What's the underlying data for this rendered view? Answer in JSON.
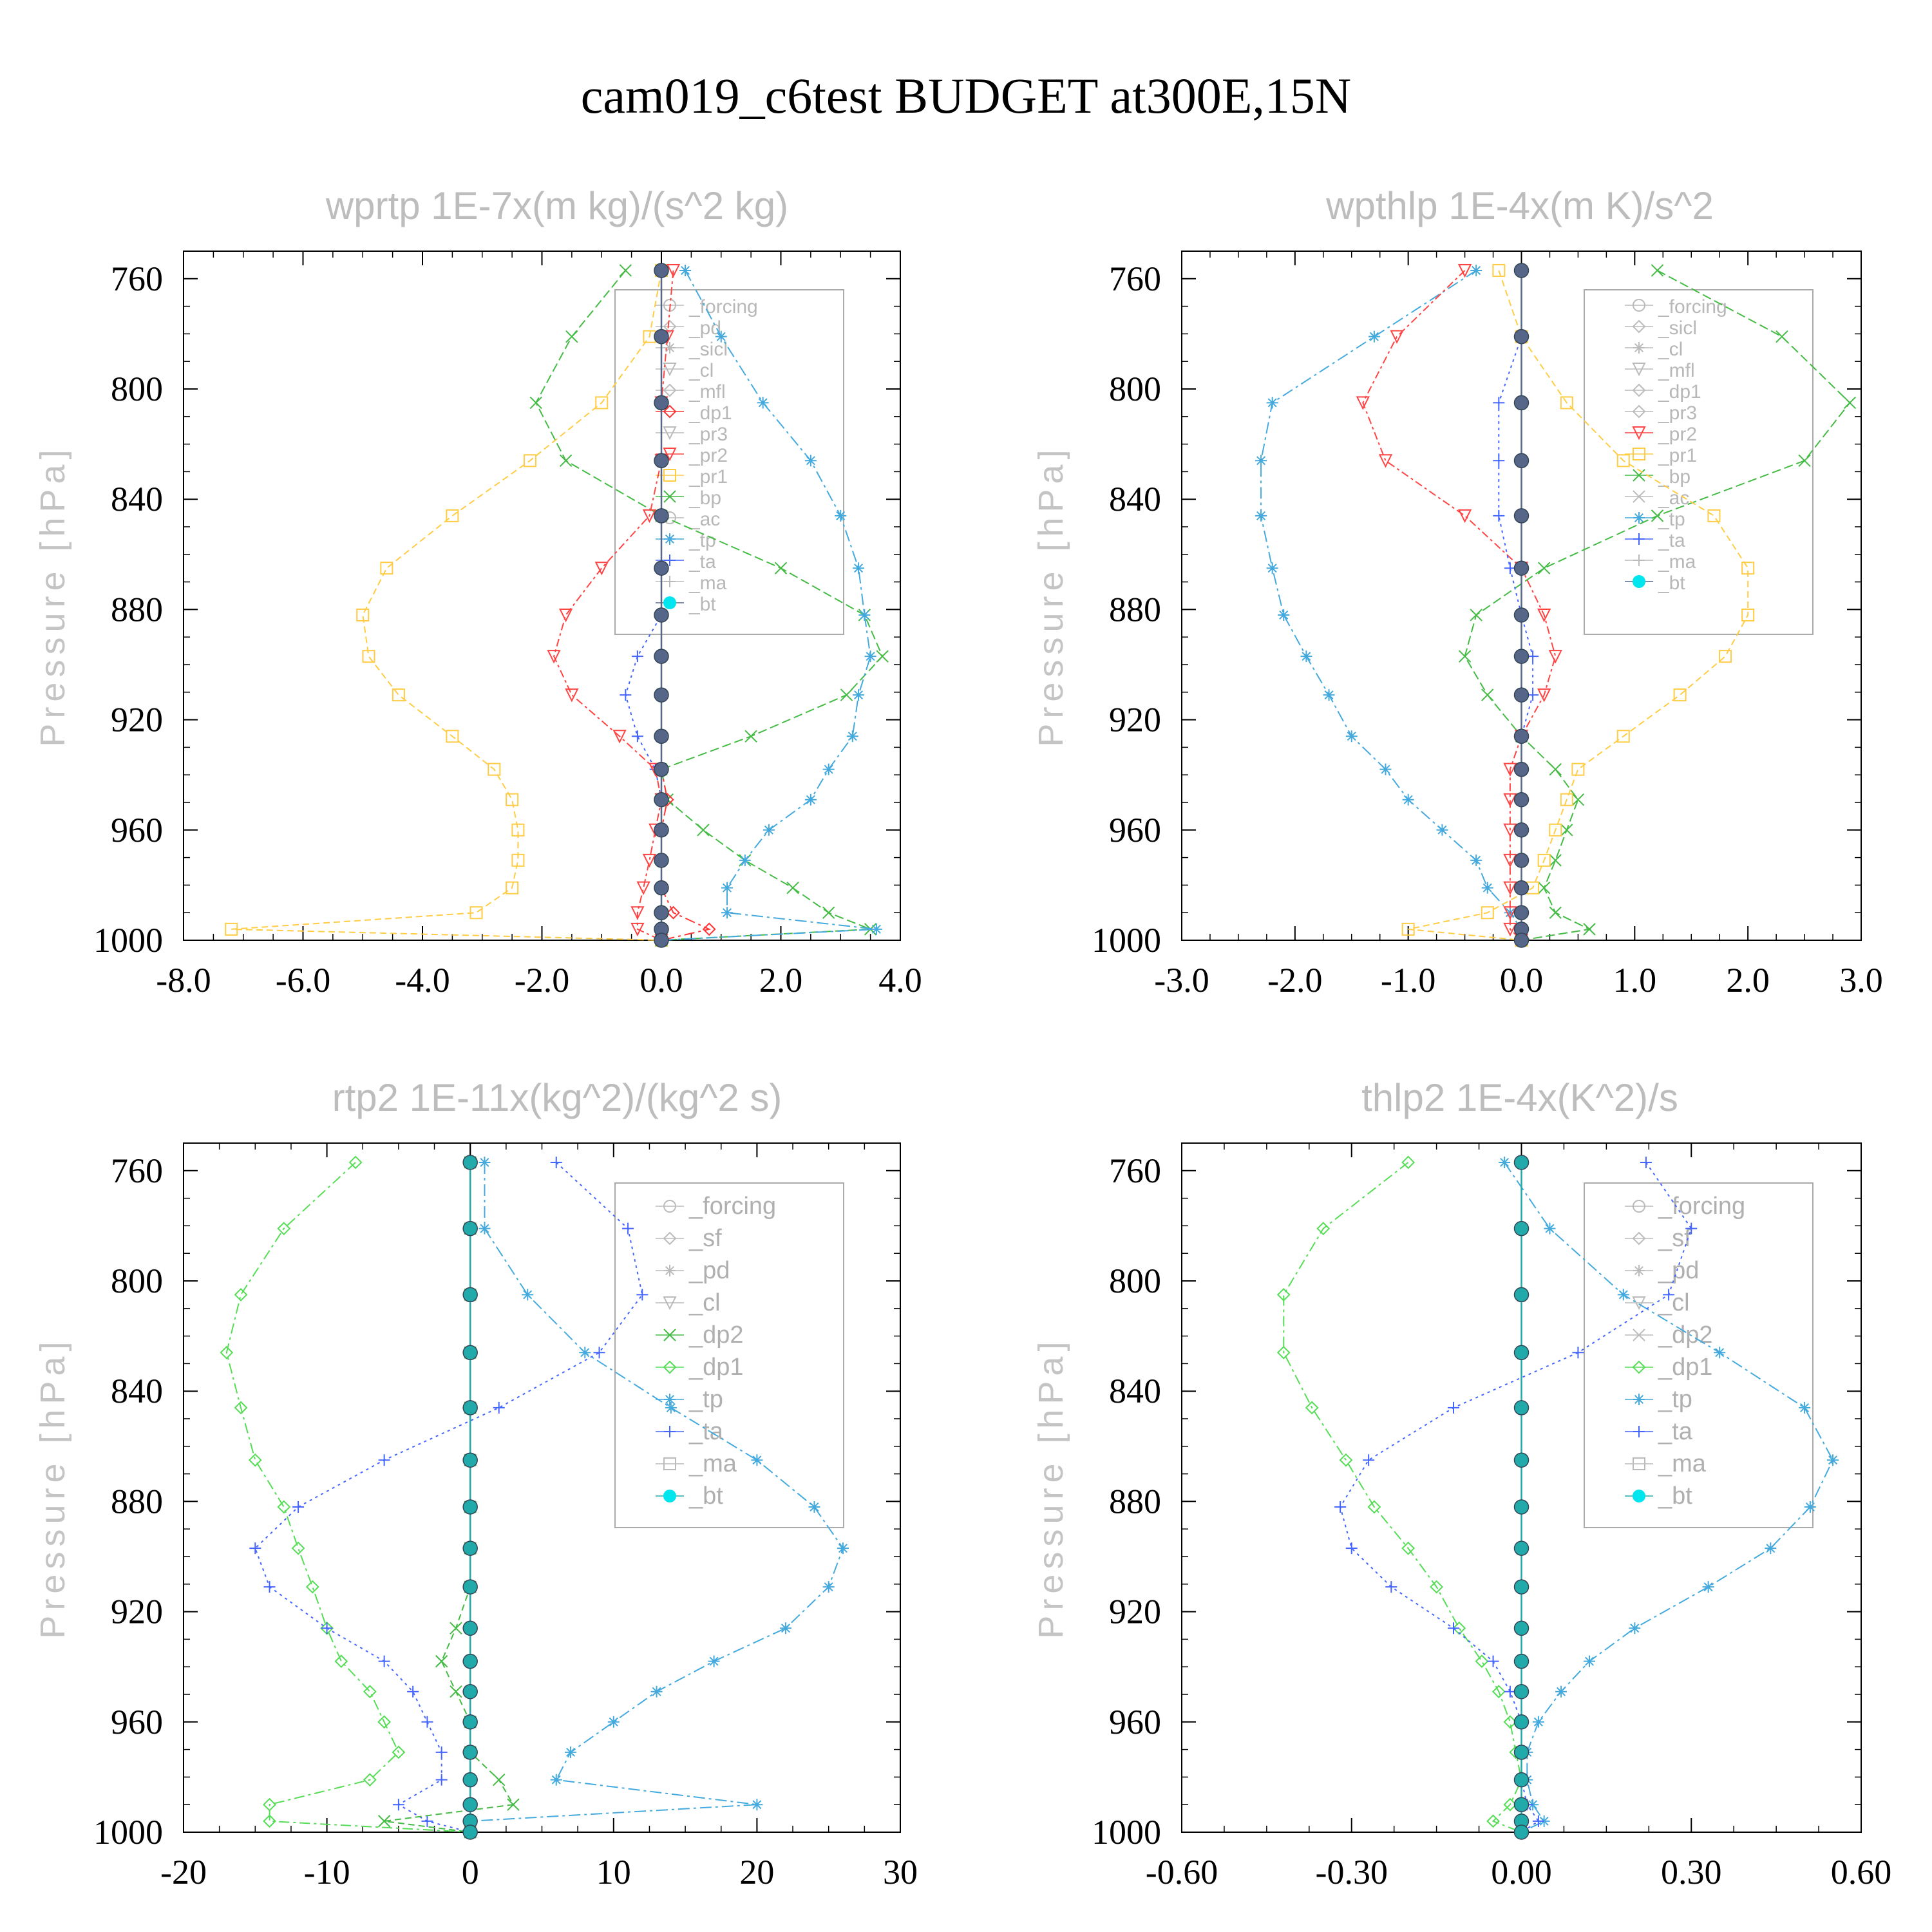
{
  "title": "cam019_c6test  BUDGET at300E,15N",
  "chart_data": [
    {
      "type": "line",
      "title": "wprtp  1E-7x(m kg)/(s^2 kg)",
      "ylabel": "Pressure [hPa]",
      "xlim": [
        -8,
        4
      ],
      "ylim": [
        1000,
        750
      ],
      "xticks": [
        "-8.0",
        "-6.0",
        "-4.0",
        "-2.0",
        "0.0",
        "2.0",
        "4.0"
      ],
      "yticks": [
        "760",
        "800",
        "840",
        "880",
        "920",
        "960",
        "1000"
      ],
      "levels": [
        757,
        781,
        805,
        826,
        846,
        865,
        882,
        897,
        911,
        926,
        938,
        949,
        960,
        971,
        981,
        990,
        996,
        1000
      ],
      "legend": [
        "_forcing",
        "_pd",
        "_sicl",
        "_cl",
        "_mfl",
        "_dp1",
        "_pr3",
        "_pr2",
        "_pr1",
        "_bp",
        "_ac",
        "_tp",
        "_ta",
        "_ma",
        "_bt"
      ],
      "series": [
        {
          "name": "_pr1",
          "color": "#ffcc44",
          "values": [
            0,
            -0.2,
            -1.0,
            -2.2,
            -3.5,
            -4.6,
            -5.0,
            -4.9,
            -4.4,
            -3.5,
            -2.8,
            -2.5,
            -2.4,
            -2.4,
            -2.5,
            -3.1,
            -7.2,
            0
          ]
        },
        {
          "name": "_bp",
          "color": "#44bb44",
          "values": [
            -0.6,
            -1.5,
            -2.1,
            -1.6,
            0,
            2.0,
            3.4,
            3.7,
            3.1,
            1.5,
            0,
            0.1,
            0.7,
            1.4,
            2.2,
            2.8,
            3.5,
            0
          ]
        },
        {
          "name": "_tp",
          "color": "#44aadd",
          "values": [
            0.4,
            1.0,
            1.7,
            2.5,
            3.0,
            3.3,
            3.4,
            3.5,
            3.3,
            3.2,
            2.8,
            2.5,
            1.8,
            1.4,
            1.1,
            1.1,
            3.6,
            0
          ]
        },
        {
          "name": "_ta",
          "color": "#4466ff",
          "values": [
            0,
            0,
            0,
            0,
            0,
            0,
            0,
            -0.4,
            -0.6,
            -0.4,
            -0.1,
            0,
            0,
            0,
            0,
            0,
            0,
            0
          ]
        },
        {
          "name": "_pr2",
          "color": "#ff4444",
          "values": [
            0.2,
            0.1,
            0,
            0,
            -0.2,
            -1.0,
            -1.6,
            -1.8,
            -1.5,
            -0.7,
            -0.1,
            0,
            -0.1,
            -0.2,
            -0.3,
            -0.4,
            -0.4,
            0
          ]
        },
        {
          "name": "_dp1",
          "color": "#ff3333",
          "values": [
            0,
            0,
            0,
            0,
            0,
            0,
            0,
            0,
            0,
            0,
            0,
            0.1,
            0,
            0,
            0,
            0.2,
            0.8,
            0
          ]
        },
        {
          "name": "_bt",
          "color": "#556688",
          "values": [
            0,
            0,
            0,
            0,
            0,
            0,
            0,
            0,
            0,
            0,
            0,
            0,
            0,
            0,
            0,
            0,
            0,
            0
          ]
        }
      ]
    },
    {
      "type": "line",
      "title": "wpthlp  1E-4x(m K)/s^2",
      "ylabel": "Pressure [hPa]",
      "xlim": [
        -3,
        3
      ],
      "ylim": [
        1000,
        750
      ],
      "xticks": [
        "-3.0",
        "-2.0",
        "-1.0",
        "0.0",
        "1.0",
        "2.0",
        "3.0"
      ],
      "yticks": [
        "760",
        "800",
        "840",
        "880",
        "920",
        "960",
        "1000"
      ],
      "levels": [
        757,
        781,
        805,
        826,
        846,
        865,
        882,
        897,
        911,
        926,
        938,
        949,
        960,
        971,
        981,
        990,
        996,
        1000
      ],
      "legend": [
        "_forcing",
        "_sicl",
        "_cl",
        "_mfl",
        "_dp1",
        "_pr3",
        "_pr2",
        "_pr1",
        "_bp",
        "_ac",
        "_tp",
        "_ta",
        "_ma",
        "_bt"
      ],
      "series": [
        {
          "name": "_tp",
          "color": "#44aadd",
          "values": [
            -0.4,
            -1.3,
            -2.2,
            -2.3,
            -2.3,
            -2.2,
            -2.1,
            -1.9,
            -1.7,
            -1.5,
            -1.2,
            -1.0,
            -0.7,
            -0.4,
            -0.3,
            -0.1,
            0,
            0
          ]
        },
        {
          "name": "_bp",
          "color": "#44bb44",
          "values": [
            1.2,
            2.3,
            2.9,
            2.5,
            1.2,
            0.2,
            -0.4,
            -0.5,
            -0.3,
            0,
            0.3,
            0.5,
            0.4,
            0.3,
            0.2,
            0.3,
            0.6,
            0
          ]
        },
        {
          "name": "_pr1",
          "color": "#ffcc44",
          "values": [
            -0.2,
            0,
            0.4,
            0.9,
            1.7,
            2.0,
            2.0,
            1.8,
            1.4,
            0.9,
            0.5,
            0.4,
            0.3,
            0.2,
            0.1,
            -0.3,
            -1.0,
            0
          ]
        },
        {
          "name": "_pr2",
          "color": "#ff4444",
          "values": [
            -0.5,
            -1.1,
            -1.4,
            -1.2,
            -0.5,
            0,
            0.2,
            0.3,
            0.2,
            0,
            -0.1,
            -0.1,
            -0.1,
            -0.1,
            -0.1,
            -0.1,
            -0.1,
            0
          ]
        },
        {
          "name": "_ta",
          "color": "#4466ff",
          "values": [
            0,
            0,
            -0.2,
            -0.2,
            -0.2,
            -0.1,
            0,
            0.1,
            0.1,
            0,
            0,
            0,
            0,
            0,
            0,
            0,
            0,
            0
          ]
        },
        {
          "name": "_bt",
          "color": "#556688",
          "values": [
            0,
            0,
            0,
            0,
            0,
            0,
            0,
            0,
            0,
            0,
            0,
            0,
            0,
            0,
            0,
            0,
            0,
            0
          ]
        }
      ]
    },
    {
      "type": "line",
      "title": "rtp2  1E-11x(kg^2)/(kg^2 s)",
      "ylabel": "Pressure [hPa]",
      "xlim": [
        -20,
        30
      ],
      "ylim": [
        1000,
        750
      ],
      "xticks": [
        "-20",
        "-10",
        "0",
        "10",
        "20",
        "30"
      ],
      "yticks": [
        "760",
        "800",
        "840",
        "880",
        "920",
        "960",
        "1000"
      ],
      "levels": [
        757,
        781,
        805,
        826,
        846,
        865,
        882,
        897,
        911,
        926,
        938,
        949,
        960,
        971,
        981,
        990,
        996,
        1000
      ],
      "legend": [
        "_forcing",
        "_sf",
        "_pd",
        "_cl",
        "_dp2",
        "_dp1",
        "_tp",
        "_ta",
        "_ma",
        "_bt"
      ],
      "series": [
        {
          "name": "_dp1",
          "color": "#55dd55",
          "values": [
            -8,
            -13,
            -16,
            -17,
            -16,
            -15,
            -13,
            -12,
            -11,
            -10,
            -9,
            -7,
            -6,
            -5,
            -7,
            -14,
            -14,
            0
          ]
        },
        {
          "name": "_tp",
          "color": "#44aadd",
          "values": [
            1,
            1,
            4,
            8,
            14,
            20,
            24,
            26,
            25,
            22,
            17,
            13,
            10,
            7,
            6,
            20,
            0,
            0
          ]
        },
        {
          "name": "_ta",
          "color": "#4466ff",
          "values": [
            6,
            11,
            12,
            9,
            2,
            -6,
            -12,
            -15,
            -14,
            -10,
            -6,
            -4,
            -3,
            -2,
            -2,
            -5,
            -3,
            0
          ]
        },
        {
          "name": "_dp2",
          "color": "#44bb44",
          "values": [
            0,
            0,
            0,
            0,
            0,
            0,
            0,
            0,
            0,
            -1,
            -2,
            -1,
            0,
            0,
            2,
            3,
            -6,
            0
          ]
        },
        {
          "name": "_bt",
          "color": "#22aaaa",
          "values": [
            0,
            0,
            0,
            0,
            0,
            0,
            0,
            0,
            0,
            0,
            0,
            0,
            0,
            0,
            0,
            0,
            0,
            0
          ]
        }
      ]
    },
    {
      "type": "line",
      "title": "thlp2  1E-4x(K^2)/s",
      "ylabel": "Pressure [hPa]",
      "xlim": [
        -0.6,
        0.6
      ],
      "ylim": [
        1000,
        750
      ],
      "xticks": [
        "-0.60",
        "-0.30",
        "0.00",
        "0.30",
        "0.60"
      ],
      "yticks": [
        "760",
        "800",
        "840",
        "880",
        "920",
        "960",
        "1000"
      ],
      "levels": [
        757,
        781,
        805,
        826,
        846,
        865,
        882,
        897,
        911,
        926,
        938,
        949,
        960,
        971,
        981,
        990,
        996,
        1000
      ],
      "legend": [
        "_forcing",
        "_sf",
        "_pd",
        "_cl",
        "_dp2",
        "_dp1",
        "_tp",
        "_ta",
        "_ma",
        "_bt"
      ],
      "series": [
        {
          "name": "_dp1",
          "color": "#55dd55",
          "values": [
            -0.2,
            -0.35,
            -0.42,
            -0.42,
            -0.37,
            -0.31,
            -0.26,
            -0.2,
            -0.15,
            -0.11,
            -0.07,
            -0.04,
            -0.02,
            -0.01,
            0,
            -0.02,
            -0.05,
            0
          ]
        },
        {
          "name": "_tp",
          "color": "#44aadd",
          "values": [
            -0.03,
            0.05,
            0.18,
            0.35,
            0.5,
            0.55,
            0.51,
            0.44,
            0.33,
            0.2,
            0.12,
            0.07,
            0.03,
            0.01,
            0.01,
            0.02,
            0.04,
            0
          ]
        },
        {
          "name": "_ta",
          "color": "#4466ff",
          "values": [
            0.22,
            0.3,
            0.26,
            0.1,
            -0.12,
            -0.27,
            -0.32,
            -0.3,
            -0.23,
            -0.12,
            -0.05,
            -0.02,
            0,
            0,
            0,
            0.01,
            0.03,
            0
          ]
        },
        {
          "name": "_bt",
          "color": "#22aaaa",
          "values": [
            0,
            0,
            0,
            0,
            0,
            0,
            0,
            0,
            0,
            0,
            0,
            0,
            0,
            0,
            0,
            0,
            0,
            0
          ]
        }
      ]
    }
  ]
}
